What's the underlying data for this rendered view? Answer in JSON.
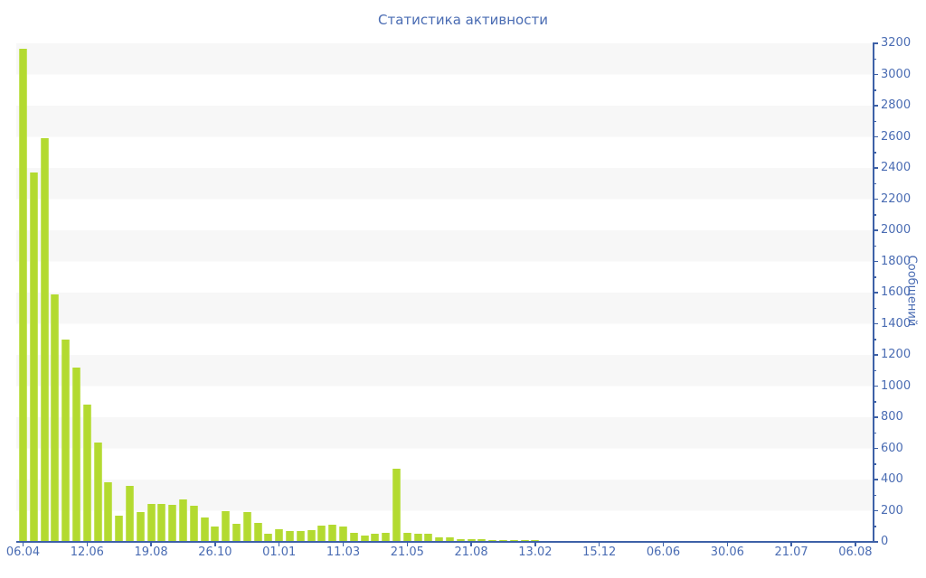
{
  "chart": {
    "title": "Статистика активности",
    "y_axis_title": "Сообщений"
  },
  "chart_data": {
    "type": "bar",
    "title": "Статистика активности",
    "xlabel": "",
    "ylabel": "Сообщений",
    "ylim": [
      0,
      3200
    ],
    "y_tick_step": 200,
    "y_minor_tick_step": 100,
    "y_tick_labels": [
      "0",
      "200",
      "400",
      "600",
      "800",
      "1000",
      "1200",
      "1400",
      "1600",
      "1800",
      "2000",
      "2200",
      "2400",
      "2600",
      "2800",
      "3000",
      "3200"
    ],
    "x_tick_labels": [
      "06.04",
      "12.06",
      "19.08",
      "26.10",
      "01.01",
      "11.03",
      "21.05",
      "21.08",
      "13.02",
      "15.12",
      "06.06",
      "30.06",
      "21.07",
      "06.08"
    ],
    "x_label_every_n_bars": 6,
    "legend_position": "none",
    "grid": "horizontal-stripes",
    "bar_color": "#b3da30",
    "axis_color": "#3e61a7",
    "text_color": "#4a6cb3",
    "stripe_color": "#f7f7f7",
    "values": [
      3165,
      2370,
      2590,
      1590,
      1300,
      1120,
      880,
      640,
      380,
      170,
      360,
      190,
      245,
      245,
      235,
      275,
      230,
      155,
      100,
      195,
      118,
      190,
      120,
      55,
      80,
      72,
      70,
      78,
      105,
      112,
      100,
      60,
      40,
      54,
      56,
      470,
      60,
      50,
      55,
      30,
      28,
      16,
      16,
      15,
      12,
      12,
      11,
      10,
      10,
      8,
      8,
      8,
      8,
      8,
      8,
      8,
      8,
      8,
      8,
      8,
      8,
      8,
      8,
      8,
      8,
      8,
      8,
      8,
      8,
      8,
      8,
      8,
      8,
      8,
      8,
      8,
      8,
      8,
      8,
      8
    ]
  }
}
